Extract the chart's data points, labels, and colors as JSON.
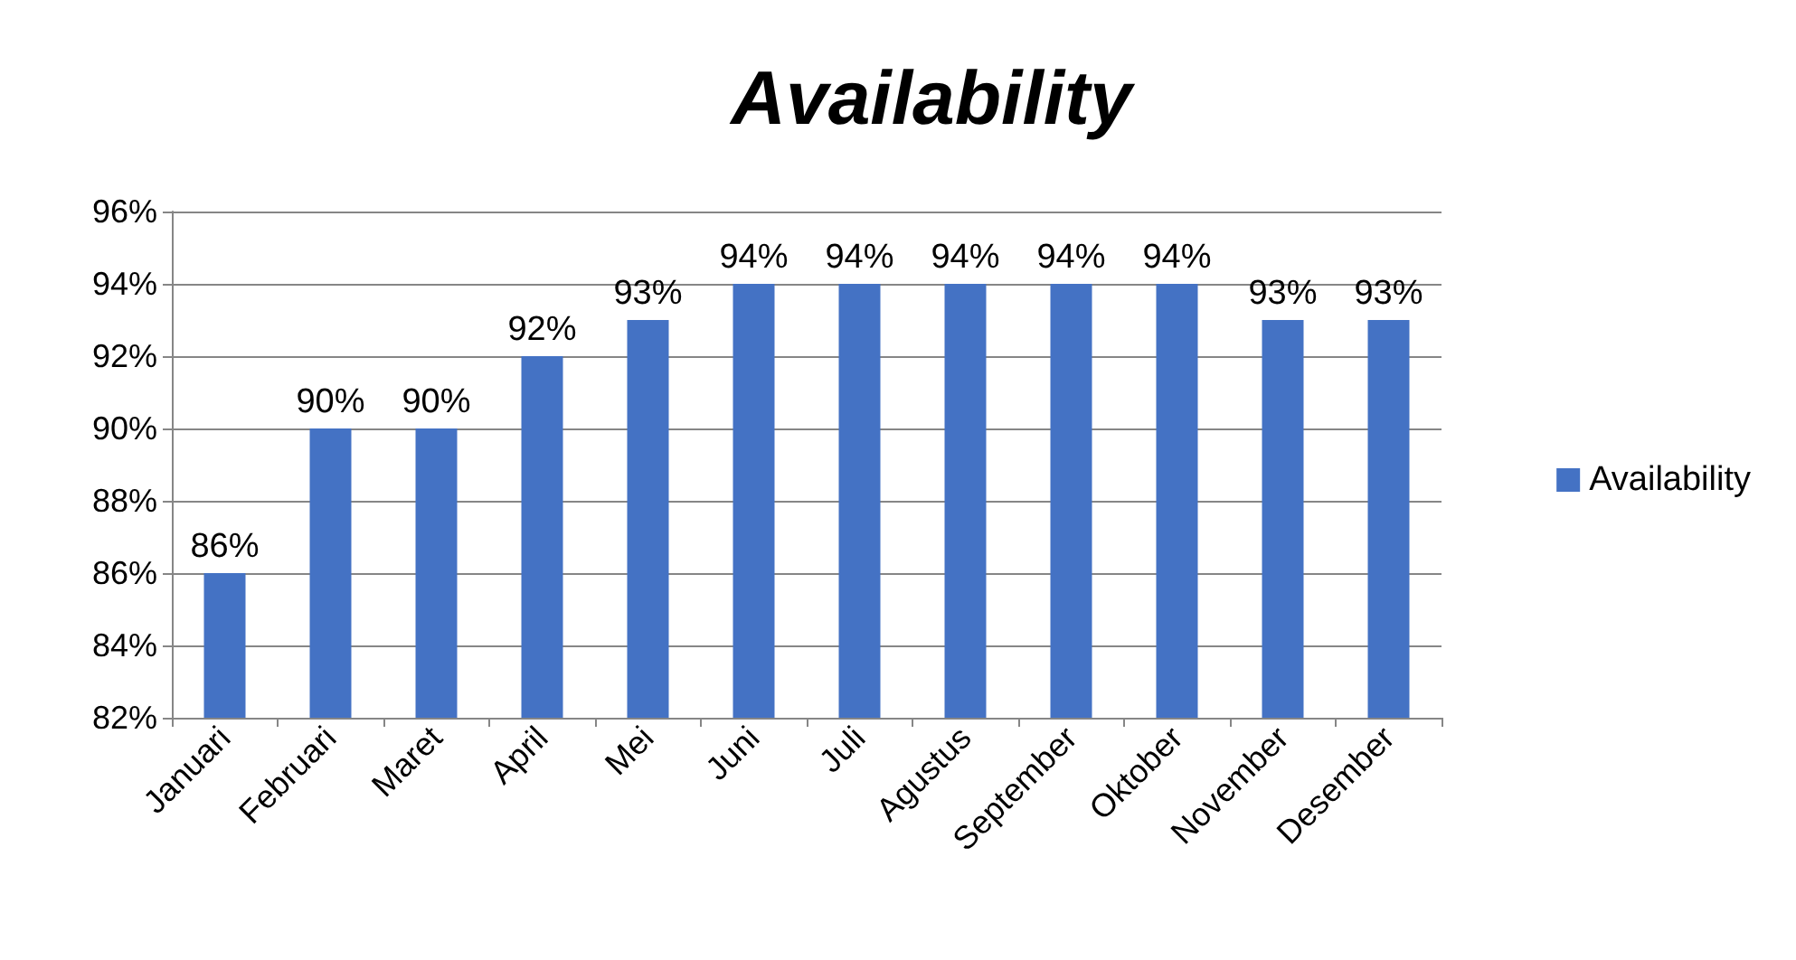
{
  "chart_data": {
    "type": "bar",
    "title": "Availability",
    "categories": [
      "Januari",
      "Februari",
      "Maret",
      "April",
      "Mei",
      "Juni",
      "Juli",
      "Agustus",
      "September",
      "Oktober",
      "November",
      "Desember"
    ],
    "series": [
      {
        "name": "Availability",
        "color": "#4472c4",
        "values": [
          86,
          90,
          90,
          92,
          93,
          94,
          94,
          94,
          94,
          94,
          93,
          93
        ],
        "value_labels": [
          "86%",
          "90%",
          "90%",
          "92%",
          "93%",
          "94%",
          "94%",
          "94%",
          "94%",
          "94%",
          "93%",
          "93%"
        ]
      }
    ],
    "ylim": [
      82,
      96
    ],
    "yticks": [
      {
        "value": 82,
        "label": "82%"
      },
      {
        "value": 84,
        "label": "84%"
      },
      {
        "value": 86,
        "label": "86%"
      },
      {
        "value": 88,
        "label": "88%"
      },
      {
        "value": 90,
        "label": "90%"
      },
      {
        "value": 92,
        "label": "92%"
      },
      {
        "value": 94,
        "label": "94%"
      },
      {
        "value": 96,
        "label": "96%"
      }
    ],
    "grid": "y",
    "legend": "right"
  }
}
